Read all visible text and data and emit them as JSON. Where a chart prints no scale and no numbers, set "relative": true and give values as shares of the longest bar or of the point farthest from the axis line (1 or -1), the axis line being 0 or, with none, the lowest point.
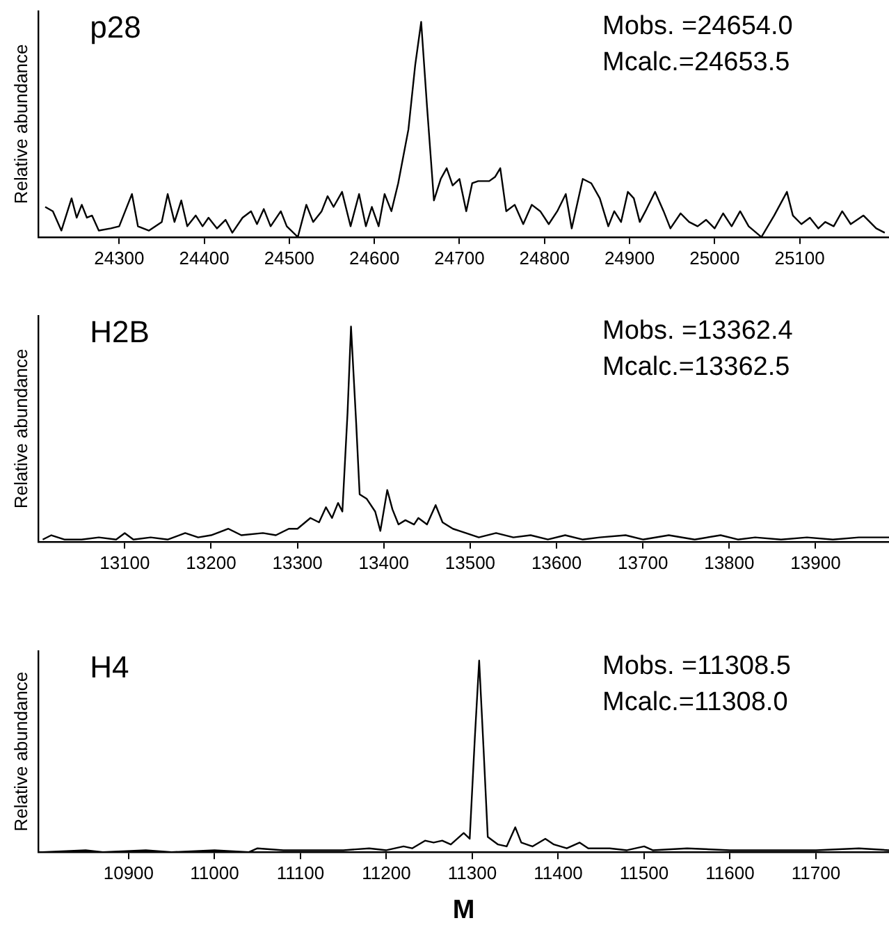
{
  "chart_data": [
    {
      "type": "line",
      "title": "p28",
      "ylabel": "Relative abundance",
      "relative": true,
      "grid": false,
      "legend": false,
      "marker": "none",
      "color": "#000000",
      "annotations": [
        "Mobs. =24654.0",
        "Mcalc.=24653.5"
      ],
      "xlim": [
        24205,
        25205
      ],
      "xticks": [
        24300,
        24400,
        24500,
        24600,
        24700,
        24800,
        24900,
        25000,
        25100
      ],
      "x": [
        24213,
        24222,
        24232,
        24244,
        24250,
        24256,
        24262,
        24268,
        24276,
        24290,
        24300,
        24315,
        24322,
        24335,
        24350,
        24357,
        24365,
        24373,
        24380,
        24390,
        24398,
        24405,
        24415,
        24425,
        24433,
        24445,
        24455,
        24462,
        24470,
        24478,
        24490,
        24497,
        24510,
        24520,
        24528,
        24538,
        24545,
        24552,
        24562,
        24572,
        24582,
        24590,
        24597,
        24605,
        24612,
        24620,
        24628,
        24640,
        24648,
        24655,
        24662,
        24670,
        24678,
        24685,
        24692,
        24700,
        24708,
        24715,
        24722,
        24735,
        24742,
        24748,
        24755,
        24765,
        24775,
        24785,
        24795,
        24805,
        24815,
        24825,
        24832,
        24845,
        24855,
        24865,
        24875,
        24882,
        24890,
        24898,
        24905,
        24912,
        24920,
        24930,
        24940,
        24948,
        24960,
        24970,
        24980,
        24990,
        25000,
        25010,
        25020,
        25030,
        25040,
        25055,
        25070,
        25085,
        25092,
        25102,
        25112,
        25122,
        25130,
        25140,
        25150,
        25160,
        25175,
        25190,
        25200
      ],
      "values": [
        0.14,
        0.12,
        0.03,
        0.18,
        0.09,
        0.15,
        0.09,
        0.1,
        0.03,
        0.04,
        0.05,
        0.2,
        0.05,
        0.03,
        0.07,
        0.2,
        0.07,
        0.17,
        0.05,
        0.1,
        0.05,
        0.09,
        0.04,
        0.08,
        0.02,
        0.09,
        0.12,
        0.06,
        0.13,
        0.05,
        0.12,
        0.05,
        0,
        0.15,
        0.07,
        0.12,
        0.19,
        0.14,
        0.21,
        0.05,
        0.2,
        0.05,
        0.14,
        0.05,
        0.2,
        0.12,
        0.25,
        0.5,
        0.8,
        1,
        0.6,
        0.17,
        0.27,
        0.32,
        0.24,
        0.27,
        0.12,
        0.25,
        0.26,
        0.26,
        0.28,
        0.32,
        0.12,
        0.15,
        0.06,
        0.15,
        0.12,
        0.06,
        0.12,
        0.2,
        0.04,
        0.27,
        0.25,
        0.18,
        0.05,
        0.12,
        0.07,
        0.21,
        0.18,
        0.07,
        0.13,
        0.21,
        0.12,
        0.04,
        0.11,
        0.07,
        0.05,
        0.08,
        0.04,
        0.11,
        0.05,
        0.12,
        0.05,
        0,
        0.1,
        0.21,
        0.1,
        0.06,
        0.09,
        0.04,
        0.07,
        0.05,
        0.12,
        0.06,
        0.1,
        0.04,
        0.02
      ]
    },
    {
      "type": "line",
      "title": "H2B",
      "ylabel": "Relative abundance",
      "relative": true,
      "grid": false,
      "legend": false,
      "marker": "none",
      "color": "#000000",
      "annotations": [
        "Mobs. =13362.4",
        "Mcalc.=13362.5"
      ],
      "xlim": [
        13000,
        13985
      ],
      "xticks": [
        13100,
        13200,
        13300,
        13400,
        13500,
        13600,
        13700,
        13800,
        13900
      ],
      "x": [
        13005,
        13015,
        13030,
        13050,
        13070,
        13090,
        13100,
        13110,
        13130,
        13150,
        13170,
        13185,
        13200,
        13220,
        13235,
        13260,
        13275,
        13290,
        13300,
        13315,
        13325,
        13333,
        13340,
        13347,
        13352,
        13358,
        13362,
        13368,
        13372,
        13380,
        13390,
        13396,
        13404,
        13410,
        13417,
        13425,
        13435,
        13440,
        13450,
        13460,
        13468,
        13480,
        13495,
        13510,
        13530,
        13550,
        13570,
        13590,
        13610,
        13630,
        13650,
        13680,
        13700,
        13730,
        13760,
        13790,
        13810,
        13830,
        13860,
        13890,
        13920,
        13950,
        13985
      ],
      "values": [
        0.01,
        0.03,
        0.01,
        0.01,
        0.02,
        0.01,
        0.04,
        0.01,
        0.02,
        0.01,
        0.04,
        0.02,
        0.03,
        0.06,
        0.03,
        0.04,
        0.03,
        0.06,
        0.06,
        0.11,
        0.09,
        0.16,
        0.11,
        0.18,
        0.14,
        0.6,
        1,
        0.55,
        0.22,
        0.2,
        0.14,
        0.05,
        0.24,
        0.15,
        0.08,
        0.1,
        0.08,
        0.11,
        0.08,
        0.17,
        0.09,
        0.06,
        0.04,
        0.02,
        0.04,
        0.02,
        0.03,
        0.01,
        0.03,
        0.01,
        0.02,
        0.03,
        0.01,
        0.03,
        0.01,
        0.03,
        0.01,
        0.02,
        0.01,
        0.02,
        0.01,
        0.02,
        0.02
      ]
    },
    {
      "type": "line",
      "title": "H4",
      "xlabel": "M",
      "ylabel": "Relative abundance",
      "relative": true,
      "grid": false,
      "legend": false,
      "marker": "none",
      "color": "#000000",
      "annotations": [
        "Mobs. =11308.5",
        "Mcalc.=11308.0"
      ],
      "xlim": [
        10795,
        11785
      ],
      "xticks": [
        10900,
        11000,
        11100,
        11200,
        11300,
        11400,
        11500,
        11600,
        11700
      ],
      "x": [
        10800,
        10850,
        10870,
        10920,
        10950,
        11000,
        11040,
        11050,
        11080,
        11100,
        11150,
        11180,
        11200,
        11220,
        11230,
        11245,
        11255,
        11265,
        11275,
        11290,
        11297,
        11303,
        11308,
        11313,
        11318,
        11330,
        11340,
        11350,
        11357,
        11370,
        11385,
        11395,
        11410,
        11425,
        11435,
        11460,
        11480,
        11500,
        11510,
        11550,
        11600,
        11650,
        11700,
        11750,
        11785
      ],
      "values": [
        0,
        0.01,
        0,
        0.01,
        0,
        0.01,
        0,
        0.02,
        0.01,
        0.01,
        0.01,
        0.02,
        0.01,
        0.03,
        0.02,
        0.06,
        0.05,
        0.06,
        0.04,
        0.1,
        0.07,
        0.6,
        1,
        0.55,
        0.08,
        0.04,
        0.03,
        0.13,
        0.05,
        0.03,
        0.07,
        0.04,
        0.02,
        0.05,
        0.02,
        0.02,
        0.01,
        0.03,
        0.01,
        0.02,
        0.01,
        0.01,
        0.01,
        0.02,
        0.01
      ]
    }
  ]
}
